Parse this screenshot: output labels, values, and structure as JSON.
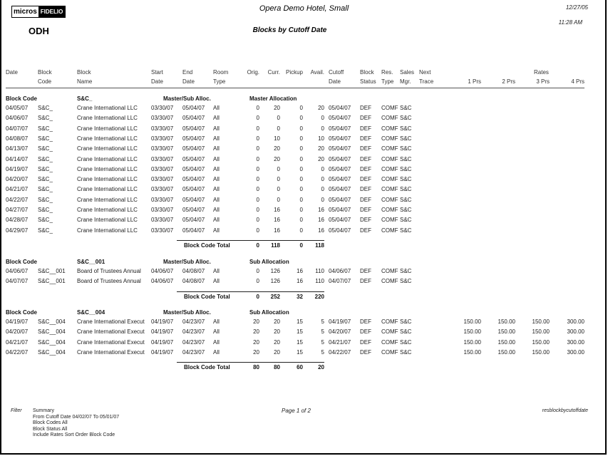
{
  "header": {
    "logo_left": "micros",
    "logo_right": "FIDELIO",
    "property_code": "ODH",
    "hotel_name": "Opera Demo Hotel, Small",
    "report_title": "Blocks by Cutoff Date",
    "print_date": "12/27/05",
    "print_time": "11:28 AM"
  },
  "columns": {
    "date": [
      "Date",
      ""
    ],
    "block_code": [
      "Block",
      "Code"
    ],
    "block_name": [
      "Block",
      "Name"
    ],
    "start_date": [
      "Start",
      "Date"
    ],
    "end_date": [
      "End",
      "Date"
    ],
    "room_type": [
      "Room",
      "Type"
    ],
    "orig": [
      "Orig.",
      ""
    ],
    "curr": [
      "Curr.",
      ""
    ],
    "pickup": [
      "Pickup",
      ""
    ],
    "avail": [
      "Avail.",
      ""
    ],
    "cutoff_date": [
      "Cutoff",
      "Date"
    ],
    "block_status": [
      "Block",
      "Status"
    ],
    "res_type": [
      "Res.",
      "Type"
    ],
    "sales_mgr": [
      "Sales",
      "Mgr."
    ],
    "next_trace": [
      "Next",
      "Trace"
    ],
    "rates": "Rates",
    "rate_cols": [
      "1 Prs",
      "2 Prs",
      "3 Prs",
      "4 Prs"
    ]
  },
  "groups": [
    {
      "label": "Block Code",
      "code": "S&C_",
      "alloc_label": "Master/Sub Alloc.",
      "alloc_value": "Master Allocation",
      "rows": [
        [
          "04/05/07",
          "S&C_",
          "Crane International LLC",
          "03/30/07",
          "05/04/07",
          "All",
          "0",
          "20",
          "0",
          "20",
          "05/04/07",
          "DEF",
          "COMF",
          "S&C",
          "",
          "",
          "",
          ""
        ],
        [
          "04/06/07",
          "S&C_",
          "Crane International LLC",
          "03/30/07",
          "05/04/07",
          "All",
          "0",
          "0",
          "0",
          "0",
          "05/04/07",
          "DEF",
          "COMF",
          "S&C",
          "",
          "",
          "",
          ""
        ],
        [
          "04/07/07",
          "S&C_",
          "Crane International LLC",
          "03/30/07",
          "05/04/07",
          "All",
          "0",
          "0",
          "0",
          "0",
          "05/04/07",
          "DEF",
          "COMF",
          "S&C",
          "",
          "",
          "",
          ""
        ],
        [
          "04/08/07",
          "S&C_",
          "Crane International LLC",
          "03/30/07",
          "05/04/07",
          "All",
          "0",
          "10",
          "0",
          "10",
          "05/04/07",
          "DEF",
          "COMF",
          "S&C",
          "",
          "",
          "",
          ""
        ],
        [
          "04/13/07",
          "S&C_",
          "Crane International LLC",
          "03/30/07",
          "05/04/07",
          "All",
          "0",
          "20",
          "0",
          "20",
          "05/04/07",
          "DEF",
          "COMF",
          "S&C",
          "",
          "",
          "",
          ""
        ],
        [
          "04/14/07",
          "S&C_",
          "Crane International LLC",
          "03/30/07",
          "05/04/07",
          "All",
          "0",
          "20",
          "0",
          "20",
          "05/04/07",
          "DEF",
          "COMF",
          "S&C",
          "",
          "",
          "",
          ""
        ],
        [
          "04/19/07",
          "S&C_",
          "Crane International LLC",
          "03/30/07",
          "05/04/07",
          "All",
          "0",
          "0",
          "0",
          "0",
          "05/04/07",
          "DEF",
          "COMF",
          "S&C",
          "",
          "",
          "",
          ""
        ],
        [
          "04/20/07",
          "S&C_",
          "Crane International LLC",
          "03/30/07",
          "05/04/07",
          "All",
          "0",
          "0",
          "0",
          "0",
          "05/04/07",
          "DEF",
          "COMF",
          "S&C",
          "",
          "",
          "",
          ""
        ],
        [
          "04/21/07",
          "S&C_",
          "Crane International LLC",
          "03/30/07",
          "05/04/07",
          "All",
          "0",
          "0",
          "0",
          "0",
          "05/04/07",
          "DEF",
          "COMF",
          "S&C",
          "",
          "",
          "",
          ""
        ],
        [
          "04/22/07",
          "S&C_",
          "Crane International LLC",
          "03/30/07",
          "05/04/07",
          "All",
          "0",
          "0",
          "0",
          "0",
          "05/04/07",
          "DEF",
          "COMF",
          "S&C",
          "",
          "",
          "",
          ""
        ],
        [
          "04/27/07",
          "S&C_",
          "Crane International LLC",
          "03/30/07",
          "05/04/07",
          "All",
          "0",
          "16",
          "0",
          "16",
          "05/04/07",
          "DEF",
          "COMF",
          "S&C",
          "",
          "",
          "",
          ""
        ],
        [
          "04/28/07",
          "S&C_",
          "Crane International LLC",
          "03/30/07",
          "05/04/07",
          "All",
          "0",
          "16",
          "0",
          "16",
          "05/04/07",
          "DEF",
          "COMF",
          "S&C",
          "",
          "",
          "",
          ""
        ],
        [
          "04/29/07",
          "S&C_",
          "Crane International LLC",
          "03/30/07",
          "05/04/07",
          "All",
          "0",
          "16",
          "0",
          "16",
          "05/04/07",
          "DEF",
          "COMF",
          "S&C",
          "",
          "",
          "",
          ""
        ]
      ],
      "total": {
        "label": "Block Code  Total",
        "orig": "0",
        "curr": "118",
        "pickup": "0",
        "avail": "118"
      }
    },
    {
      "label": "Block Code",
      "code": "S&C__001",
      "alloc_label": "Master/Sub Alloc.",
      "alloc_value": "Sub Allocation",
      "rows": [
        [
          "04/06/07",
          "S&C__001",
          "Board of Trustees Annual",
          "04/06/07",
          "04/08/07",
          "All",
          "0",
          "126",
          "16",
          "110",
          "04/06/07",
          "DEF",
          "COMF",
          "S&C",
          "",
          "",
          "",
          ""
        ],
        [
          "04/07/07",
          "S&C__001",
          "Board of Trustees Annual",
          "04/06/07",
          "04/08/07",
          "All",
          "0",
          "126",
          "16",
          "110",
          "04/07/07",
          "DEF",
          "COMF",
          "S&C",
          "",
          "",
          "",
          ""
        ]
      ],
      "total": {
        "label": "Block Code  Total",
        "orig": "0",
        "curr": "252",
        "pickup": "32",
        "avail": "220"
      }
    },
    {
      "label": "Block Code",
      "code": "S&C__004",
      "alloc_label": "Master/Sub Alloc.",
      "alloc_value": "Sub Allocation",
      "rows": [
        [
          "04/19/07",
          "S&C__004",
          "Crane International Execut",
          "04/19/07",
          "04/23/07",
          "All",
          "20",
          "20",
          "15",
          "5",
          "04/19/07",
          "DEF",
          "COMF",
          "S&C",
          "150.00",
          "150.00",
          "150.00",
          "300.00"
        ],
        [
          "04/20/07",
          "S&C__004",
          "Crane International Execut",
          "04/19/07",
          "04/23/07",
          "All",
          "20",
          "20",
          "15",
          "5",
          "04/20/07",
          "DEF",
          "COMF",
          "S&C",
          "150.00",
          "150.00",
          "150.00",
          "300.00"
        ],
        [
          "04/21/07",
          "S&C__004",
          "Crane International Execut",
          "04/19/07",
          "04/23/07",
          "All",
          "20",
          "20",
          "15",
          "5",
          "04/21/07",
          "DEF",
          "COMF",
          "S&C",
          "150.00",
          "150.00",
          "150.00",
          "300.00"
        ],
        [
          "04/22/07",
          "S&C__004",
          "Crane International Execut",
          "04/19/07",
          "04/23/07",
          "All",
          "20",
          "20",
          "15",
          "5",
          "04/22/07",
          "DEF",
          "COMF",
          "S&C",
          "150.00",
          "150.00",
          "150.00",
          "300.00"
        ]
      ],
      "total": {
        "label": "Block Code  Total",
        "orig": "80",
        "curr": "80",
        "pickup": "60",
        "avail": "20"
      }
    }
  ],
  "footer": {
    "filter_label": "Filter",
    "filter_lines": [
      "Summary",
      "From Cutoff Date 04/02/07 To 05/01/07",
      "Block Codes All",
      "Block Status All",
      "Include Rates  Sort Order  Block Code"
    ],
    "page": "Page 1  of 2",
    "report_name": "resblockbycutoffdate"
  }
}
